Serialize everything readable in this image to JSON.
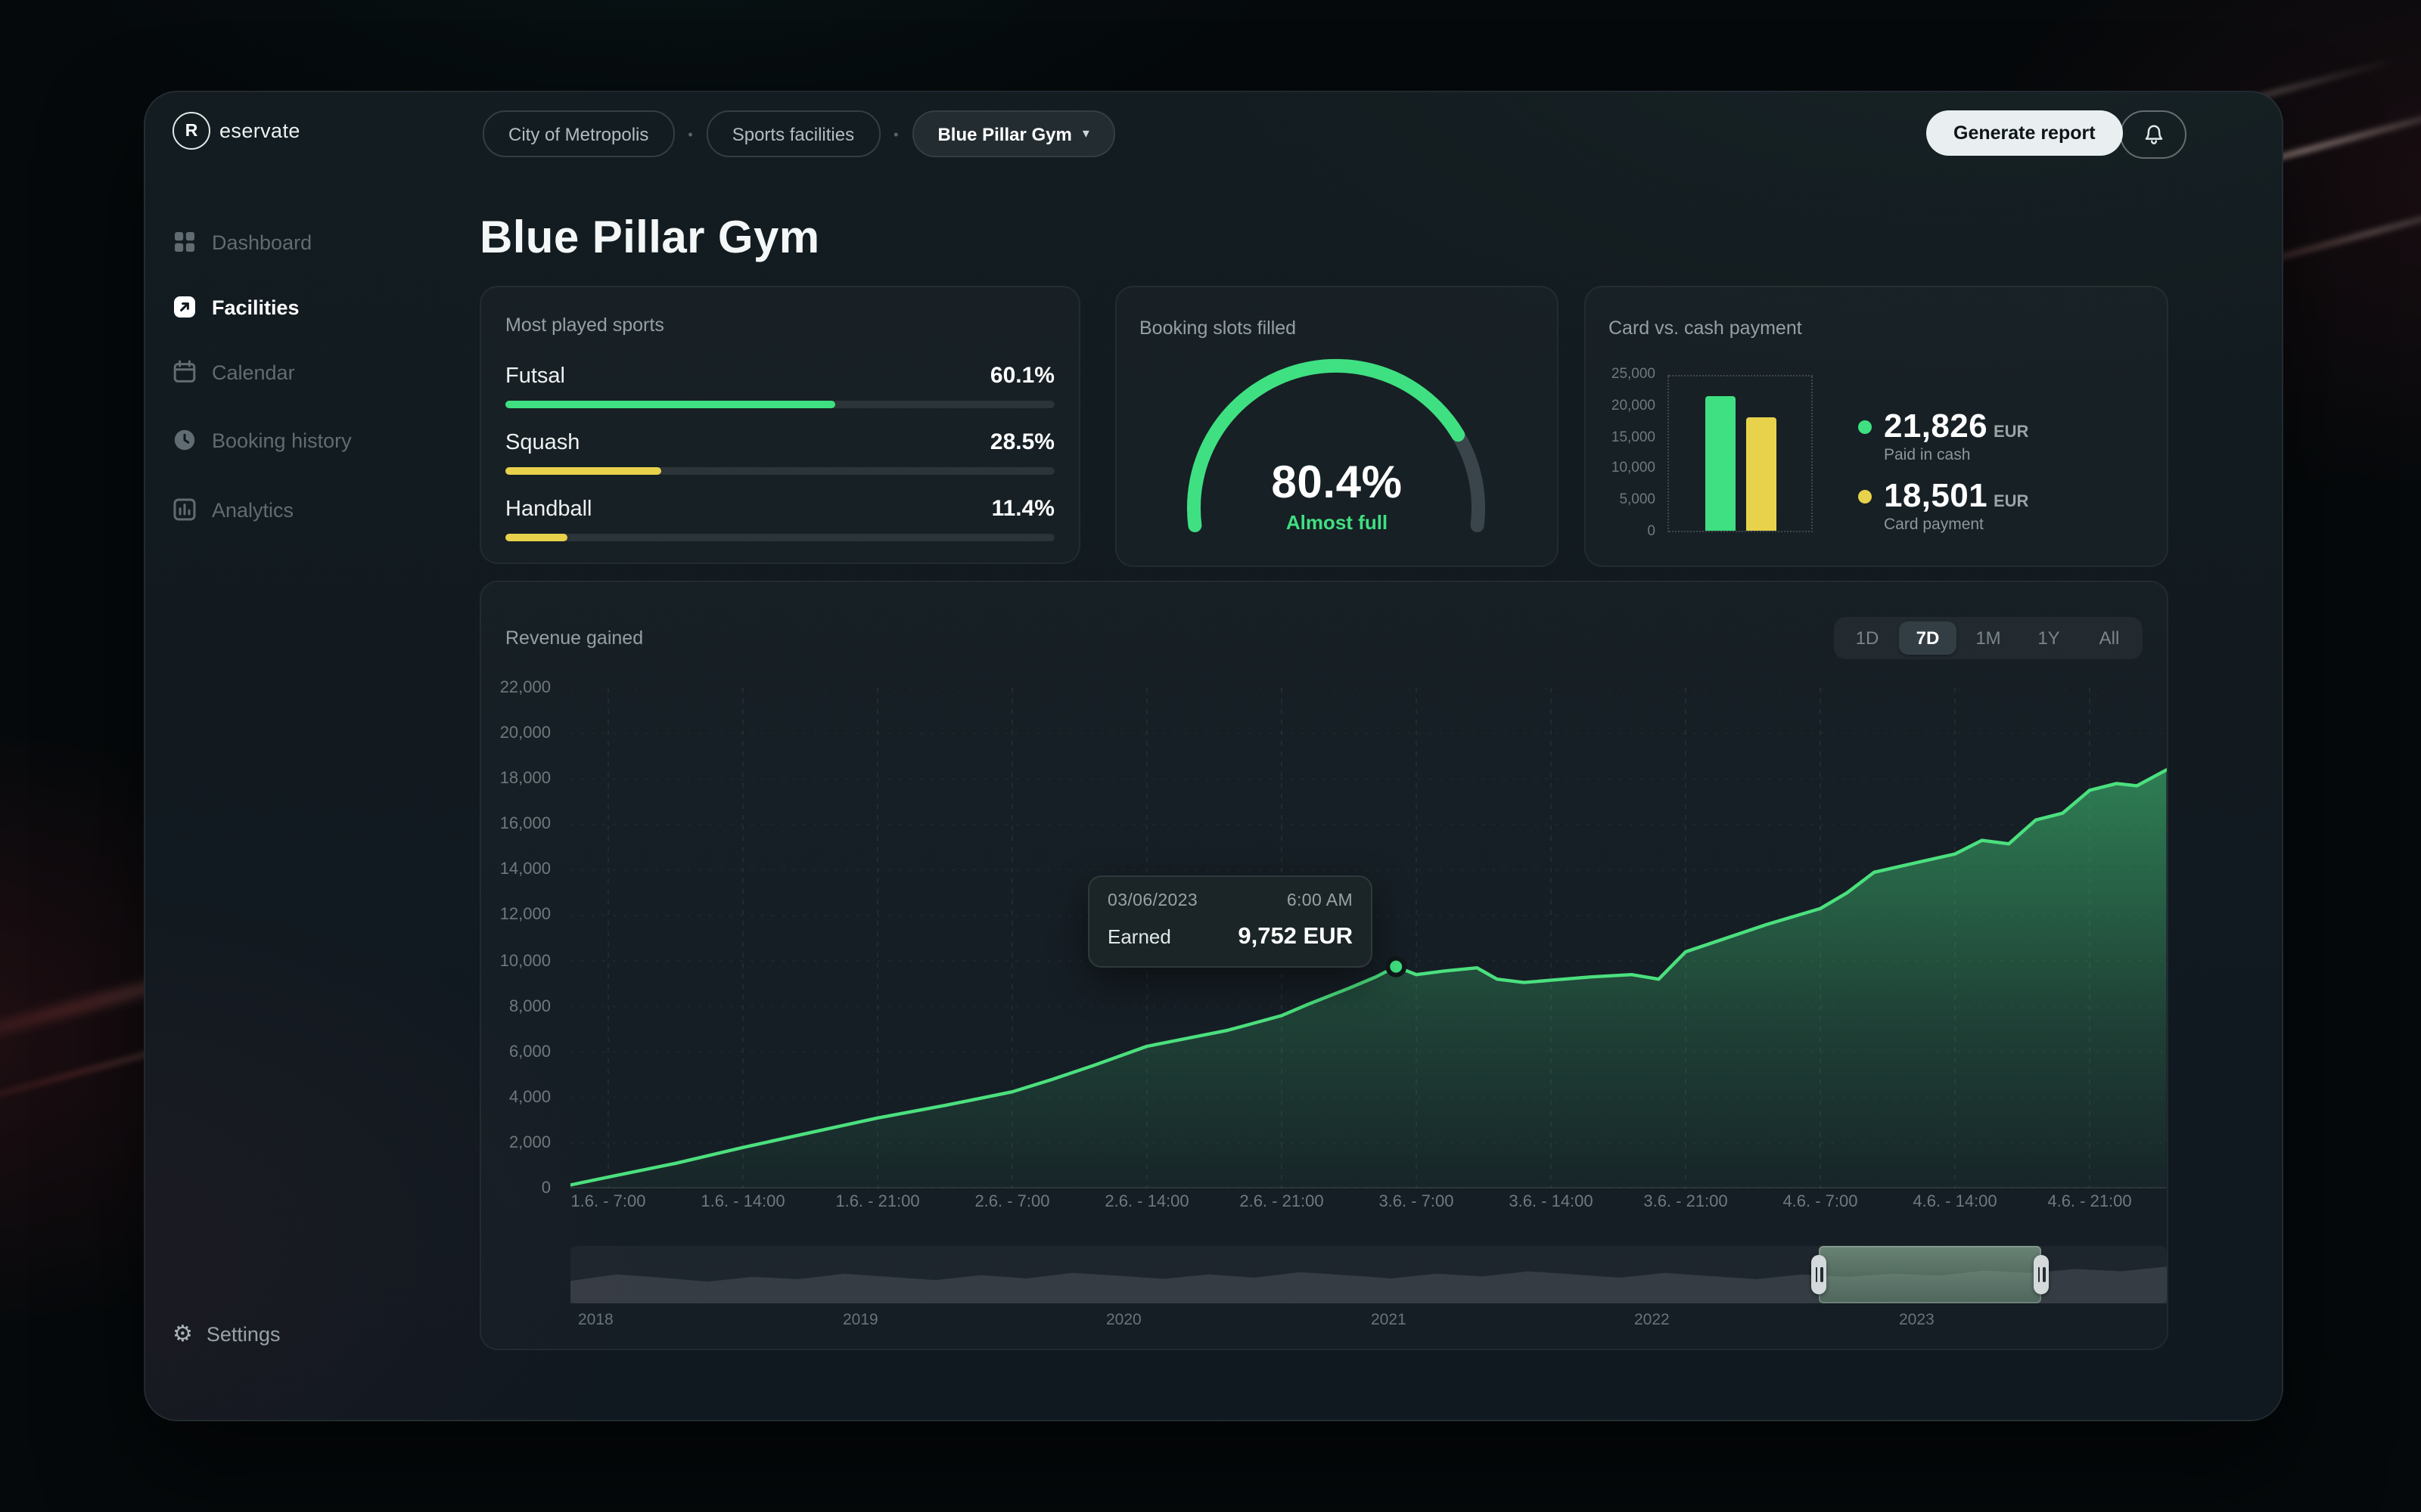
{
  "colors": {
    "green": "#3fe081",
    "yellow": "#e8d24b",
    "line": "#4be07e"
  },
  "brand": {
    "initial": "R",
    "name_rest": "eservate"
  },
  "topbar": {
    "breadcrumb": {
      "items": [
        "City of Metropolis",
        "Sports facilities",
        "Blue Pillar Gym"
      ],
      "separator": "•",
      "caret": "▾"
    },
    "generate_report_label": "Generate report"
  },
  "sidebar": {
    "items": [
      {
        "label": "Dashboard",
        "icon": "dashboard-icon",
        "active": false
      },
      {
        "label": "Facilities",
        "icon": "facilities-icon",
        "active": true
      },
      {
        "label": "Calendar",
        "icon": "calendar-icon",
        "active": false
      },
      {
        "label": "Booking history",
        "icon": "history-icon",
        "active": false
      },
      {
        "label": "Analytics",
        "icon": "analytics-icon",
        "active": false
      }
    ],
    "settings_label": "Settings"
  },
  "page": {
    "title": "Blue Pillar Gym"
  },
  "cards": {
    "most_played": {
      "title": "Most played sports",
      "rows": [
        {
          "sport": "Futsal",
          "pct_label": "60.1%",
          "value": 60.1,
          "color": "green"
        },
        {
          "sport": "Squash",
          "pct_label": "28.5%",
          "value": 28.5,
          "color": "yellow"
        },
        {
          "sport": "Handball",
          "pct_label": "11.4%",
          "value": 11.4,
          "color": "yellow"
        }
      ]
    },
    "booking": {
      "title": "Booking slots filled",
      "value": 80.4,
      "pct_label": "80.4%",
      "status": "Almost full"
    },
    "payment": {
      "title": "Card vs. cash payment",
      "ymax": 25000,
      "axis_labels": [
        "25,000",
        "20,000",
        "15,000",
        "10,000",
        "5,000",
        "0"
      ],
      "bars": [
        {
          "label": "Paid in cash",
          "amount": "21,826",
          "currency": "EUR",
          "value": 21826,
          "color": "#3fe081"
        },
        {
          "label": "Card payment",
          "amount": "18,501",
          "currency": "EUR",
          "value": 18501,
          "color": "#e8d24b"
        }
      ]
    }
  },
  "revenue": {
    "title": "Revenue gained",
    "ranges": [
      "1D",
      "7D",
      "1M",
      "1Y",
      "All"
    ],
    "active_index": 1,
    "tooltip": {
      "date": "03/06/2023",
      "time": "6:00 AM",
      "label": "Earned",
      "value": "9,752 EUR"
    },
    "chart_data": {
      "type": "area",
      "title": "Revenue gained",
      "x_labels": [
        "1.6. - 7:00",
        "1.6. - 14:00",
        "1.6. - 21:00",
        "2.6. - 7:00",
        "2.6. - 14:00",
        "2.6. - 21:00",
        "3.6. - 7:00",
        "3.6. - 14:00",
        "3.6. - 21:00",
        "4.6. - 7:00",
        "4.6. - 14:00",
        "4.6. - 21:00"
      ],
      "y_labels": [
        "22,000",
        "20,000",
        "18,000",
        "16,000",
        "14,000",
        "12,000",
        "10,000",
        "8,000",
        "6,000",
        "4,000",
        "2,000",
        "0"
      ],
      "ylim": [
        0,
        22000
      ],
      "points": [
        [
          -0.28,
          150
        ],
        [
          0,
          500
        ],
        [
          0.5,
          1100
        ],
        [
          1,
          1800
        ],
        [
          1.5,
          2450
        ],
        [
          2,
          3100
        ],
        [
          2.5,
          3650
        ],
        [
          3,
          4250
        ],
        [
          3.3,
          4800
        ],
        [
          3.6,
          5400
        ],
        [
          4,
          6250
        ],
        [
          4.3,
          6600
        ],
        [
          4.6,
          6950
        ],
        [
          5,
          7600
        ],
        [
          5.2,
          8100
        ],
        [
          5.5,
          8800
        ],
        [
          5.7,
          9300
        ],
        [
          5.85,
          9752
        ],
        [
          6,
          9400
        ],
        [
          6.2,
          9550
        ],
        [
          6.45,
          9700
        ],
        [
          6.6,
          9200
        ],
        [
          6.8,
          9050
        ],
        [
          7,
          9150
        ],
        [
          7.3,
          9300
        ],
        [
          7.6,
          9400
        ],
        [
          7.8,
          9200
        ],
        [
          8,
          10400
        ],
        [
          8.3,
          11000
        ],
        [
          8.6,
          11600
        ],
        [
          9,
          12300
        ],
        [
          9.2,
          13000
        ],
        [
          9.4,
          13900
        ],
        [
          9.7,
          14300
        ],
        [
          10,
          14700
        ],
        [
          10.2,
          15300
        ],
        [
          10.4,
          15150
        ],
        [
          10.6,
          16200
        ],
        [
          10.8,
          16500
        ],
        [
          11,
          17500
        ],
        [
          11.2,
          17800
        ],
        [
          11.35,
          17700
        ],
        [
          11.57,
          18400
        ]
      ],
      "highlight": {
        "t": 5.85,
        "value": 9752
      }
    },
    "timeline": {
      "years": [
        "2018",
        "2019",
        "2020",
        "2021",
        "2022",
        "2023"
      ],
      "selection": {
        "from": 0.782,
        "to": 0.921
      },
      "values": [
        0.42,
        0.58,
        0.5,
        0.4,
        0.52,
        0.46,
        0.6,
        0.52,
        0.44,
        0.56,
        0.48,
        0.62,
        0.55,
        0.47,
        0.58,
        0.5,
        0.64,
        0.56,
        0.48,
        0.6,
        0.53,
        0.66,
        0.58,
        0.5,
        0.62,
        0.54,
        0.46,
        0.58,
        0.52,
        0.6,
        0.55,
        0.68,
        0.62,
        0.72,
        0.66,
        0.78
      ]
    }
  }
}
